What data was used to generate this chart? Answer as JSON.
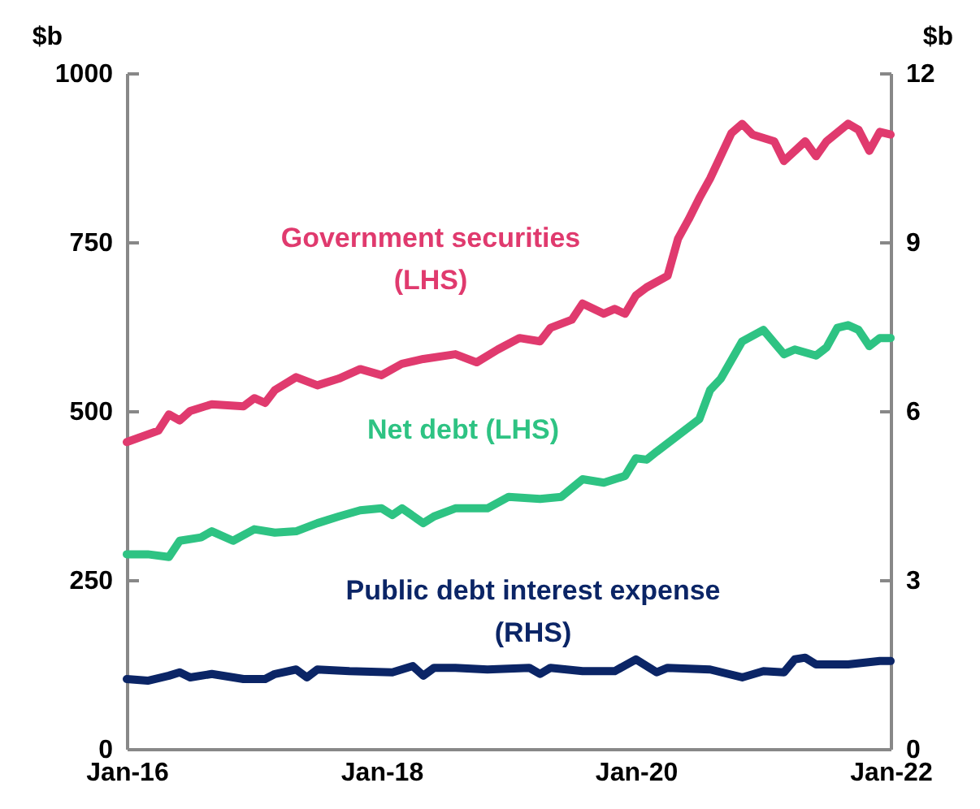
{
  "chart_data": {
    "type": "line",
    "ylabel": "$b",
    "y2label": "$b",
    "xlim": [
      "2016-01",
      "2022-01"
    ],
    "xticks": [
      {
        "value": "2016-01",
        "label": "Jan-16"
      },
      {
        "value": "2018-01",
        "label": "Jan-18"
      },
      {
        "value": "2020-01",
        "label": "Jan-20"
      },
      {
        "value": "2022-01",
        "label": "Jan-22"
      }
    ],
    "ylim": [
      0,
      1000
    ],
    "yticks": [
      0,
      250,
      500,
      750,
      1000
    ],
    "y2lim": [
      0,
      12
    ],
    "y2ticks": [
      0,
      3,
      6,
      9,
      12
    ],
    "series": [
      {
        "name": "Government securities (LHS)",
        "color": "#e03a6e",
        "x": [
          "2016-01",
          "2016-04",
          "2016-05",
          "2016-06",
          "2016-07",
          "2016-09",
          "2016-12",
          "2017-01",
          "2017-02",
          "2017-03",
          "2017-05",
          "2017-07",
          "2017-09",
          "2017-11",
          "2018-01",
          "2018-03",
          "2018-05",
          "2018-08",
          "2018-10",
          "2018-12",
          "2019-02",
          "2019-04",
          "2019-05",
          "2019-07",
          "2019-08",
          "2019-10",
          "2019-11",
          "2019-12",
          "2020-01",
          "2020-02",
          "2020-04",
          "2020-05",
          "2020-06",
          "2020-07",
          "2020-08",
          "2020-10",
          "2020-11",
          "2020-12",
          "2021-02",
          "2021-03",
          "2021-05",
          "2021-06",
          "2021-07",
          "2021-09",
          "2021-10",
          "2021-11",
          "2021-12",
          "2022-01"
        ],
        "values": [
          454,
          471,
          495,
          486,
          500,
          510,
          507,
          519,
          512,
          531,
          550,
          538,
          548,
          562,
          553,
          570,
          577,
          584,
          572,
          591,
          608,
          603,
          623,
          635,
          659,
          644,
          651,
          644,
          671,
          683,
          700,
          755,
          784,
          815,
          844,
          911,
          925,
          909,
          899,
          870,
          899,
          877,
          899,
          925,
          916,
          885,
          913,
          909
        ]
      },
      {
        "name": "Net debt (LHS)",
        "color": "#2ec383",
        "x": [
          "2016-01",
          "2016-03",
          "2016-05",
          "2016-06",
          "2016-08",
          "2016-09",
          "2016-11",
          "2017-01",
          "2017-03",
          "2017-05",
          "2017-07",
          "2017-09",
          "2017-11",
          "2018-01",
          "2018-02",
          "2018-03",
          "2018-05",
          "2018-06",
          "2018-08",
          "2018-11",
          "2019-01",
          "2019-04",
          "2019-06",
          "2019-08",
          "2019-10",
          "2019-12",
          "2020-01",
          "2020-02",
          "2020-03",
          "2020-05",
          "2020-07",
          "2020-08",
          "2020-09",
          "2020-10",
          "2020-11",
          "2021-01",
          "2021-03",
          "2021-04",
          "2021-06",
          "2021-07",
          "2021-08",
          "2021-09",
          "2021-10",
          "2021-11",
          "2021-12",
          "2022-01"
        ],
        "values": [
          288,
          288,
          284,
          308,
          313,
          322,
          308,
          325,
          320,
          322,
          334,
          344,
          353,
          356,
          346,
          356,
          334,
          344,
          356,
          356,
          373,
          370,
          373,
          399,
          394,
          404,
          430,
          428,
          440,
          464,
          488,
          531,
          548,
          575,
          603,
          620,
          584,
          591,
          582,
          594,
          623,
          627,
          620,
          596,
          608,
          608
        ]
      },
      {
        "name": "Public debt interest expense (RHS)",
        "color": "#0b2566",
        "axis": "y2",
        "x": [
          "2016-01",
          "2016-03",
          "2016-05",
          "2016-06",
          "2016-07",
          "2016-09",
          "2016-12",
          "2017-02",
          "2017-03",
          "2017-05",
          "2017-06",
          "2017-07",
          "2017-10",
          "2018-02",
          "2018-04",
          "2018-05",
          "2018-06",
          "2018-08",
          "2018-11",
          "2019-03",
          "2019-04",
          "2019-05",
          "2019-08",
          "2019-11",
          "2020-01",
          "2020-03",
          "2020-04",
          "2020-08",
          "2020-11",
          "2021-01",
          "2021-03",
          "2021-04",
          "2021-05",
          "2021-06",
          "2021-09",
          "2021-12",
          "2022-01"
        ],
        "values": [
          1.24,
          1.21,
          1.3,
          1.36,
          1.27,
          1.33,
          1.24,
          1.24,
          1.33,
          1.41,
          1.27,
          1.41,
          1.38,
          1.36,
          1.47,
          1.3,
          1.44,
          1.44,
          1.41,
          1.44,
          1.33,
          1.44,
          1.38,
          1.38,
          1.59,
          1.36,
          1.44,
          1.41,
          1.27,
          1.38,
          1.36,
          1.59,
          1.62,
          1.5,
          1.5,
          1.56,
          1.56
        ]
      }
    ]
  }
}
